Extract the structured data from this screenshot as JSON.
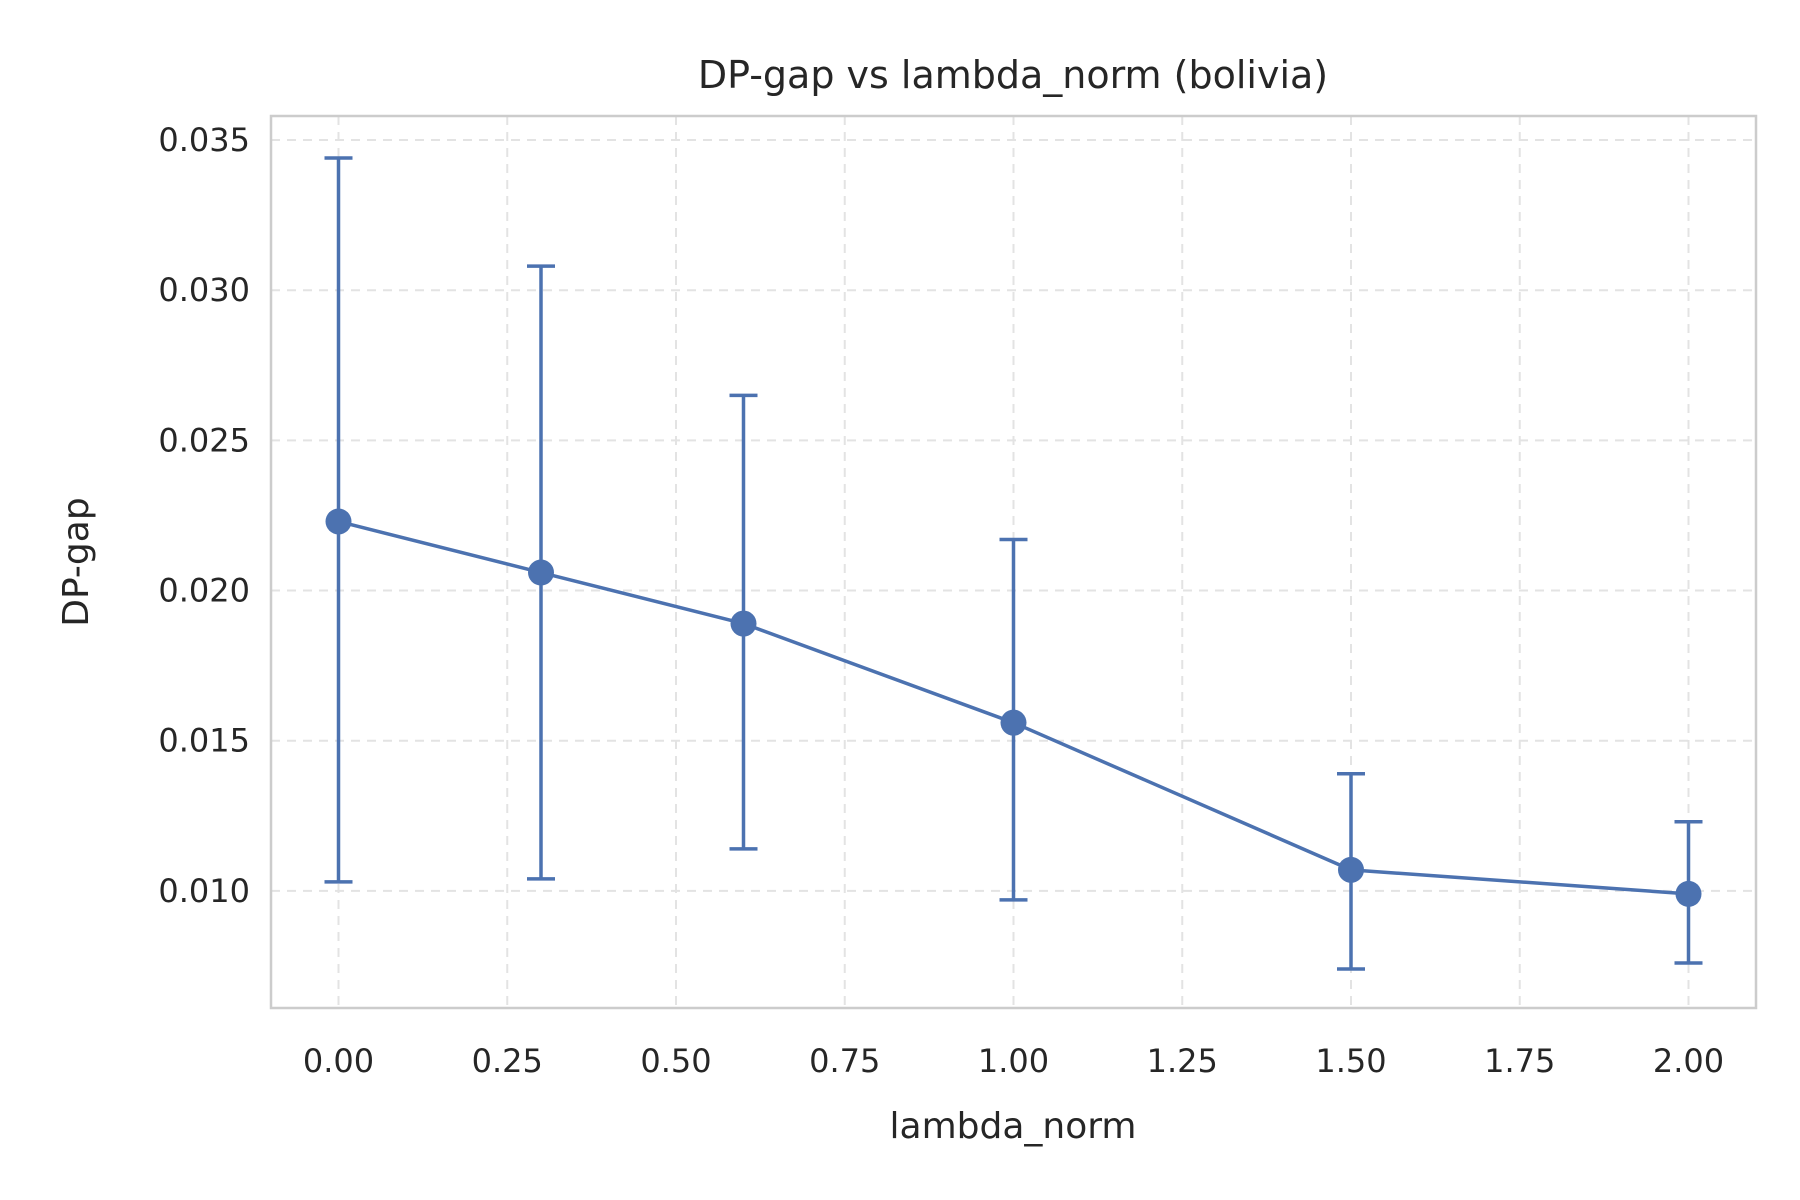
{
  "chart_data": {
    "type": "line",
    "title": "DP-gap vs lambda_norm (bolivia)",
    "xlabel": "lambda_norm",
    "ylabel": "DP-gap",
    "xlim": [
      -0.1,
      2.1
    ],
    "ylim": [
      0.0061,
      0.0358
    ],
    "x_ticks": [
      0.0,
      0.25,
      0.5,
      0.75,
      1.0,
      1.25,
      1.5,
      1.75,
      2.0
    ],
    "x_tick_labels": [
      "0.00",
      "0.25",
      "0.50",
      "0.75",
      "1.00",
      "1.25",
      "1.50",
      "1.75",
      "2.00"
    ],
    "y_ticks": [
      0.01,
      0.015,
      0.02,
      0.025,
      0.03,
      0.035
    ],
    "y_tick_labels": [
      "0.010",
      "0.015",
      "0.020",
      "0.025",
      "0.030",
      "0.035"
    ],
    "grid": true,
    "series": [
      {
        "color": "#4c72b0",
        "x": [
          0.0,
          0.3,
          0.6,
          1.0,
          1.5,
          2.0
        ],
        "y": [
          0.0223,
          0.0206,
          0.0189,
          0.0156,
          0.0107,
          0.0099
        ],
        "err_low": [
          0.0103,
          0.0104,
          0.0114,
          0.0097,
          0.0074,
          0.0076
        ],
        "err_high": [
          0.0344,
          0.0308,
          0.0265,
          0.0217,
          0.0139,
          0.0123
        ]
      }
    ]
  }
}
